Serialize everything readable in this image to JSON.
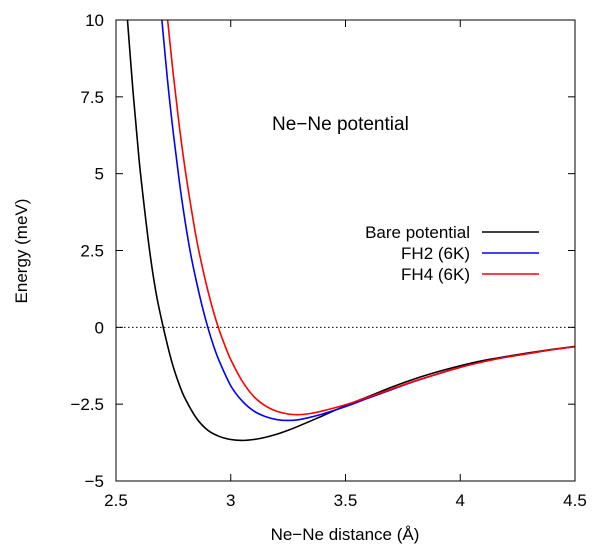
{
  "chart_data": {
    "type": "line",
    "annotation": "Ne−Ne potential",
    "xlabel": "Ne−Ne distance (Å)",
    "ylabel": "Energy (meV)",
    "xlim": [
      2.5,
      4.5
    ],
    "ylim": [
      -5,
      10
    ],
    "xticks": [
      2.5,
      3,
      3.5,
      4,
      4.5
    ],
    "xtick_labels": [
      "2.5",
      "3",
      "3.5",
      "4",
      "4.5"
    ],
    "yticks": [
      -5,
      -2.5,
      0,
      2.5,
      5,
      7.5,
      10
    ],
    "ytick_labels": [
      "−5",
      "−2.5",
      "0",
      "2.5",
      "5",
      "7.5",
      "10"
    ],
    "grid": false,
    "legend_position": "right",
    "zero_line": "dotted",
    "series": [
      {
        "name": "Bare potential",
        "color": "#000000",
        "x": [
          2.55,
          2.575,
          2.6,
          2.625,
          2.65,
          2.675,
          2.7,
          2.725,
          2.75,
          2.775,
          2.8,
          2.85,
          2.9,
          2.95,
          3.0,
          3.05,
          3.1,
          3.15,
          3.2,
          3.25,
          3.3,
          3.4,
          3.5,
          3.6,
          3.7,
          3.8,
          3.9,
          4.0,
          4.1,
          4.2,
          4.3,
          4.4,
          4.5
        ],
        "y": [
          10.0,
          7.6,
          5.5,
          3.8,
          2.3,
          1.1,
          0.2,
          -0.6,
          -1.3,
          -1.85,
          -2.3,
          -2.95,
          -3.35,
          -3.55,
          -3.65,
          -3.68,
          -3.65,
          -3.58,
          -3.48,
          -3.35,
          -3.2,
          -2.88,
          -2.55,
          -2.25,
          -1.95,
          -1.68,
          -1.45,
          -1.25,
          -1.08,
          -0.95,
          -0.83,
          -0.72,
          -0.62
        ]
      },
      {
        "name": "FH2 (6K)",
        "color": "#0000ff",
        "x": [
          2.7,
          2.725,
          2.75,
          2.775,
          2.8,
          2.825,
          2.85,
          2.875,
          2.9,
          2.925,
          2.95,
          3.0,
          3.05,
          3.1,
          3.15,
          3.2,
          3.25,
          3.3,
          3.35,
          3.4,
          3.5,
          3.6,
          3.7,
          3.8,
          3.9,
          4.0,
          4.1,
          4.2,
          4.3,
          4.4,
          4.5
        ],
        "y": [
          10.0,
          8.0,
          6.3,
          4.8,
          3.5,
          2.4,
          1.5,
          0.7,
          0.0,
          -0.6,
          -1.1,
          -1.9,
          -2.4,
          -2.72,
          -2.9,
          -3.0,
          -3.03,
          -3.0,
          -2.92,
          -2.82,
          -2.58,
          -2.3,
          -2.03,
          -1.76,
          -1.52,
          -1.3,
          -1.12,
          -0.97,
          -0.85,
          -0.73,
          -0.63
        ]
      },
      {
        "name": "FH4 (6K)",
        "color": "#ff0000",
        "x": [
          2.725,
          2.75,
          2.775,
          2.8,
          2.825,
          2.85,
          2.875,
          2.9,
          2.925,
          2.95,
          2.975,
          3.0,
          3.05,
          3.1,
          3.15,
          3.2,
          3.25,
          3.3,
          3.35,
          3.4,
          3.5,
          3.6,
          3.7,
          3.8,
          3.9,
          4.0,
          4.1,
          4.2,
          4.3,
          4.4,
          4.5
        ],
        "y": [
          10.0,
          8.2,
          6.6,
          5.2,
          4.0,
          2.9,
          2.0,
          1.2,
          0.5,
          -0.1,
          -0.6,
          -1.05,
          -1.75,
          -2.25,
          -2.55,
          -2.73,
          -2.82,
          -2.84,
          -2.8,
          -2.72,
          -2.52,
          -2.27,
          -2.01,
          -1.75,
          -1.52,
          -1.3,
          -1.12,
          -0.97,
          -0.85,
          -0.73,
          -0.63
        ]
      }
    ]
  }
}
